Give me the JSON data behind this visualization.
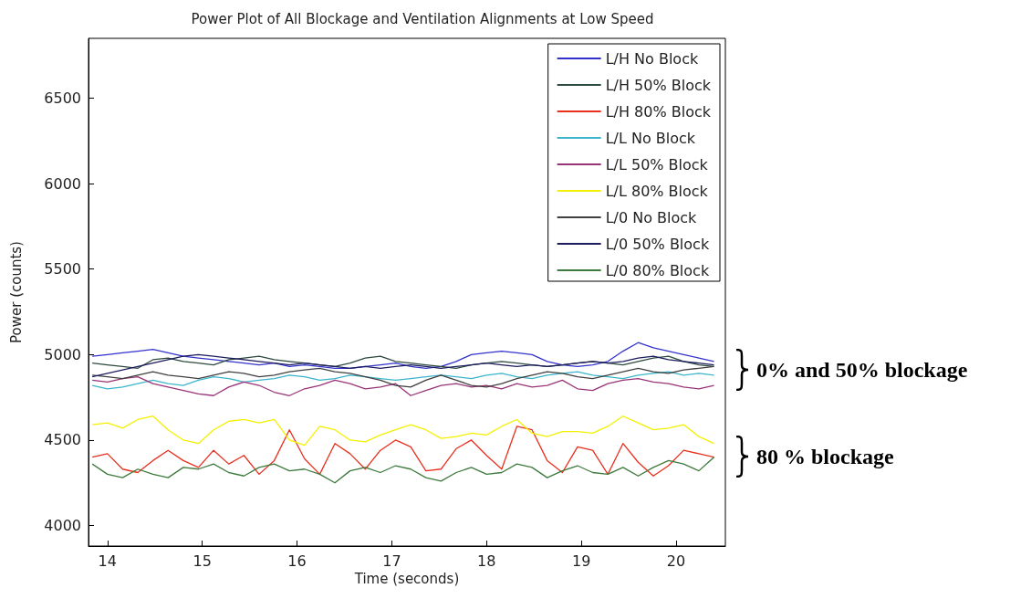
{
  "chart_data": {
    "type": "line",
    "title": "Power Plot of All Blockage and Ventilation Alignments at Low Speed",
    "xlabel": "Time (seconds)",
    "ylabel": "Power (counts)",
    "x": [
      13.84,
      14.0,
      14.16,
      14.32,
      14.48,
      14.64,
      14.8,
      14.96,
      15.12,
      15.28,
      15.44,
      15.6,
      15.76,
      15.92,
      16.08,
      16.24,
      16.4,
      16.56,
      16.72,
      16.88,
      17.04,
      17.2,
      17.36,
      17.52,
      17.68,
      17.84,
      18.0,
      18.16,
      18.32,
      18.48,
      18.64,
      18.8,
      18.96,
      19.12,
      19.28,
      19.44,
      19.6,
      19.76,
      19.92,
      20.08,
      20.24,
      20.4
    ],
    "xlim": [
      13.8,
      20.52
    ],
    "xticks": [
      14,
      15,
      16,
      17,
      18,
      19,
      20
    ],
    "ylim": [
      3880,
      6850
    ],
    "yticks": [
      4000,
      4500,
      5000,
      5500,
      6000,
      6500
    ],
    "legend": "top right",
    "series": [
      {
        "name": "L/H No Block",
        "color": "#3333cc",
        "values": [
          4990,
          5000,
          5010,
          5020,
          5030,
          5010,
          4990,
          4980,
          4970,
          4960,
          4950,
          4940,
          4950,
          4930,
          4940,
          4930,
          4920,
          4920,
          4930,
          4940,
          4950,
          4930,
          4920,
          4930,
          4960,
          5000,
          5010,
          5020,
          5010,
          5000,
          4960,
          4940,
          4930,
          4940,
          4960,
          5020,
          5070,
          5040,
          5020,
          5000,
          4980,
          4960
        ]
      },
      {
        "name": "L/H 50% Block",
        "color": "#2d4a3e",
        "values": [
          4950,
          4940,
          4930,
          4920,
          4970,
          4980,
          4960,
          4950,
          4940,
          4970,
          4980,
          4990,
          4970,
          4960,
          4950,
          4940,
          4930,
          4950,
          4980,
          4990,
          4960,
          4950,
          4940,
          4930,
          4920,
          4940,
          4950,
          4960,
          4950,
          4940,
          4930,
          4940,
          4950,
          4960,
          4950,
          4940,
          4960,
          4980,
          4990,
          4960,
          4940,
          4930
        ]
      },
      {
        "name": "L/H 80% Block",
        "color": "#e8301e",
        "values": [
          4400,
          4420,
          4330,
          4310,
          4380,
          4440,
          4380,
          4340,
          4440,
          4360,
          4410,
          4300,
          4380,
          4560,
          4390,
          4300,
          4480,
          4420,
          4330,
          4440,
          4500,
          4460,
          4320,
          4330,
          4450,
          4500,
          4410,
          4330,
          4580,
          4560,
          4380,
          4310,
          4460,
          4440,
          4300,
          4480,
          4370,
          4290,
          4350,
          4440,
          4420,
          4400
        ]
      },
      {
        "name": "L/L No Block",
        "color": "#3cb4cc",
        "values": [
          4820,
          4800,
          4810,
          4830,
          4850,
          4830,
          4820,
          4850,
          4870,
          4860,
          4840,
          4850,
          4860,
          4880,
          4870,
          4850,
          4860,
          4880,
          4870,
          4860,
          4850,
          4860,
          4870,
          4880,
          4870,
          4860,
          4880,
          4890,
          4870,
          4860,
          4880,
          4890,
          4900,
          4880,
          4870,
          4860,
          4880,
          4890,
          4900,
          4880,
          4890,
          4880
        ]
      },
      {
        "name": "L/L 50% Block",
        "color": "#993377",
        "values": [
          4850,
          4840,
          4860,
          4870,
          4830,
          4810,
          4790,
          4770,
          4760,
          4810,
          4840,
          4820,
          4780,
          4760,
          4800,
          4820,
          4850,
          4830,
          4800,
          4810,
          4830,
          4760,
          4790,
          4820,
          4830,
          4810,
          4820,
          4800,
          4830,
          4810,
          4820,
          4850,
          4800,
          4790,
          4830,
          4850,
          4860,
          4840,
          4830,
          4810,
          4800,
          4820
        ]
      },
      {
        "name": "L/L 80% Block",
        "color": "#f4f000",
        "values": [
          4590,
          4600,
          4570,
          4620,
          4640,
          4560,
          4500,
          4480,
          4560,
          4610,
          4620,
          4600,
          4620,
          4500,
          4470,
          4580,
          4560,
          4500,
          4490,
          4530,
          4560,
          4590,
          4560,
          4510,
          4520,
          4540,
          4530,
          4580,
          4620,
          4540,
          4520,
          4550,
          4550,
          4540,
          4580,
          4640,
          4600,
          4560,
          4570,
          4590,
          4520,
          4480
        ]
      },
      {
        "name": "L/0 No Block",
        "color": "#404040",
        "values": [
          4880,
          4870,
          4860,
          4880,
          4900,
          4880,
          4870,
          4860,
          4880,
          4900,
          4890,
          4870,
          4880,
          4900,
          4910,
          4920,
          4900,
          4890,
          4870,
          4850,
          4820,
          4810,
          4850,
          4880,
          4850,
          4820,
          4810,
          4830,
          4860,
          4880,
          4900,
          4890,
          4870,
          4860,
          4880,
          4900,
          4920,
          4900,
          4890,
          4910,
          4920,
          4930
        ]
      },
      {
        "name": "L/0 50% Block",
        "color": "#1c1c5e",
        "values": [
          4870,
          4890,
          4910,
          4930,
          4950,
          4970,
          4990,
          5000,
          4990,
          4980,
          4970,
          4960,
          4950,
          4940,
          4950,
          4940,
          4930,
          4920,
          4930,
          4920,
          4930,
          4940,
          4930,
          4920,
          4930,
          4940,
          4950,
          4940,
          4930,
          4940,
          4930,
          4940,
          4950,
          4960,
          4950,
          4960,
          4980,
          4990,
          4970,
          4960,
          4950,
          4940
        ]
      },
      {
        "name": "L/0 80% Block",
        "color": "#3d7a3d",
        "values": [
          4360,
          4300,
          4280,
          4330,
          4300,
          4280,
          4340,
          4330,
          4360,
          4310,
          4290,
          4340,
          4360,
          4320,
          4330,
          4300,
          4250,
          4320,
          4340,
          4310,
          4350,
          4330,
          4280,
          4260,
          4310,
          4340,
          4300,
          4310,
          4360,
          4340,
          4280,
          4320,
          4350,
          4310,
          4300,
          4340,
          4290,
          4340,
          4380,
          4360,
          4320,
          4400
        ]
      }
    ],
    "annotations": [
      "0% and 50% blockage",
      "80 % blockage"
    ]
  }
}
